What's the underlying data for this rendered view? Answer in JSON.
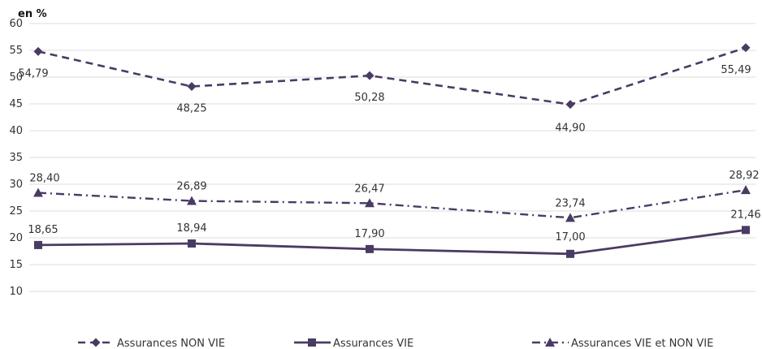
{
  "chart_data": {
    "type": "line",
    "unit_label": "en %",
    "categories": [
      "",
      "",
      "",
      "",
      ""
    ],
    "ylim": [
      10,
      60
    ],
    "yticks": [
      10,
      15,
      20,
      25,
      30,
      35,
      40,
      45,
      50,
      55,
      60
    ],
    "grid": true,
    "legend_position": "bottom",
    "series": [
      {
        "name": "Assurances NON VIE",
        "values": [
          54.79,
          48.25,
          50.28,
          44.9,
          55.49
        ],
        "labels": [
          "54,79",
          "48,25",
          "50,28",
          "44,90",
          "55,49"
        ],
        "color": "#4a3b63",
        "dash": "dashed",
        "marker": "diamond"
      },
      {
        "name": "Assurances VIE",
        "values": [
          18.65,
          18.94,
          17.9,
          17.0,
          21.46
        ],
        "labels": [
          "18,65",
          "18,94",
          "17,90",
          "17,00",
          "21,46"
        ],
        "color": "#4a3b63",
        "dash": "solid",
        "marker": "square"
      },
      {
        "name": "Assurances VIE et NON VIE",
        "values": [
          28.4,
          26.89,
          26.47,
          23.74,
          28.92
        ],
        "labels": [
          "28,40",
          "26,89",
          "26,47",
          "23,74",
          "28,92"
        ],
        "color": "#4a3b63",
        "dash": "dashdot",
        "marker": "triangle"
      }
    ]
  }
}
